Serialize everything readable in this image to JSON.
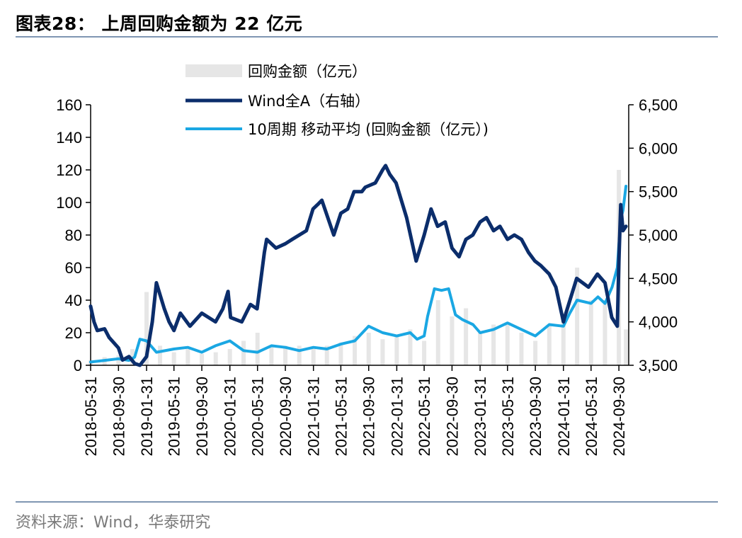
{
  "header": {
    "title": "图表28：  上周回购金额为 22 亿元"
  },
  "footer": {
    "source": "资料来源：Wind，华泰研究"
  },
  "chart_data": {
    "type": "bar+line",
    "title": "图表28：  上周回购金额为 22 亿元",
    "xlabel": "",
    "ylabel": "",
    "ylim": [
      0,
      160
    ],
    "y2lim": [
      3500,
      6500
    ],
    "yticks": [
      0,
      20,
      40,
      60,
      80,
      100,
      120,
      140,
      160
    ],
    "y2ticks": [
      "3,500",
      "4,000",
      "4,500",
      "5,000",
      "5,500",
      "6,000",
      "6,500"
    ],
    "xticks": [
      "2018-05-31",
      "2018-09-30",
      "2019-01-31",
      "2019-05-31",
      "2019-09-30",
      "2020-01-31",
      "2020-05-31",
      "2020-09-30",
      "2021-01-31",
      "2021-05-31",
      "2021-09-30",
      "2022-01-31",
      "2022-05-31",
      "2022-09-30",
      "2023-01-31",
      "2023-05-31",
      "2023-09-30",
      "2024-01-31",
      "2024-05-31",
      "2024-09-30"
    ],
    "grid": false,
    "legend": "top-center",
    "colors": {
      "bars": "#e6e6e6",
      "wind": "#0b2d6b",
      "ma": "#1aa7e3"
    },
    "series": [
      {
        "name": "回购金额（亿元）",
        "type": "bar",
        "axis": "left",
        "x": [
          "2018-05-31",
          "2018-07-31",
          "2018-09-30",
          "2018-11-30",
          "2019-01-31",
          "2019-03-31",
          "2019-05-31",
          "2019-07-31",
          "2019-09-30",
          "2019-11-30",
          "2020-01-31",
          "2020-03-31",
          "2020-05-31",
          "2020-07-31",
          "2020-09-30",
          "2020-11-30",
          "2021-01-31",
          "2021-03-31",
          "2021-05-31",
          "2021-07-31",
          "2021-09-30",
          "2021-11-30",
          "2022-01-31",
          "2022-03-31",
          "2022-05-31",
          "2022-07-31",
          "2022-09-30",
          "2022-11-30",
          "2023-01-31",
          "2023-03-31",
          "2023-05-31",
          "2023-07-31",
          "2023-09-30",
          "2023-11-30",
          "2024-01-31",
          "2024-03-31",
          "2024-05-31",
          "2024-07-31",
          "2024-09-30",
          "2024-10-31"
        ],
        "values": [
          3,
          5,
          6,
          10,
          45,
          12,
          8,
          10,
          7,
          8,
          10,
          15,
          20,
          12,
          12,
          12,
          10,
          12,
          14,
          18,
          20,
          16,
          18,
          22,
          15,
          40,
          30,
          35,
          20,
          25,
          25,
          20,
          15,
          25,
          28,
          60,
          40,
          40,
          120,
          22
        ]
      },
      {
        "name": "Wind全A（右轴）",
        "type": "line",
        "axis": "right",
        "x": [
          "2018-05-31",
          "2018-06-15",
          "2018-06-29",
          "2018-07-31",
          "2018-08-20",
          "2018-09-30",
          "2018-10-18",
          "2018-11-15",
          "2018-12-10",
          "2019-01-02",
          "2019-01-31",
          "2019-02-25",
          "2019-03-15",
          "2019-04-19",
          "2019-05-10",
          "2019-05-31",
          "2019-06-28",
          "2019-08-09",
          "2019-09-30",
          "2019-11-29",
          "2019-12-31",
          "2020-01-23",
          "2020-02-03",
          "2020-03-23",
          "2020-04-30",
          "2020-05-29",
          "2020-06-30",
          "2020-07-10",
          "2020-08-20",
          "2020-09-30",
          "2020-10-30",
          "2020-12-31",
          "2021-01-29",
          "2021-02-18",
          "2021-03-09",
          "2021-04-30",
          "2021-05-31",
          "2021-06-30",
          "2021-07-28",
          "2021-08-31",
          "2021-09-15",
          "2021-10-29",
          "2021-11-30",
          "2021-12-13",
          "2021-12-31",
          "2022-01-28",
          "2022-03-15",
          "2022-04-26",
          "2022-05-31",
          "2022-06-30",
          "2022-07-29",
          "2022-08-31",
          "2022-09-30",
          "2022-10-31",
          "2022-11-30",
          "2022-12-30",
          "2023-01-31",
          "2023-02-28",
          "2023-03-31",
          "2023-04-28",
          "2023-05-31",
          "2023-06-30",
          "2023-07-31",
          "2023-08-31",
          "2023-09-28",
          "2023-10-23",
          "2023-11-30",
          "2023-12-29",
          "2024-01-31",
          "2024-02-05",
          "2024-03-29",
          "2024-05-20",
          "2024-06-28",
          "2024-07-31",
          "2024-08-30",
          "2024-09-23",
          "2024-09-30",
          "2024-10-08",
          "2024-10-18",
          "2024-10-31"
        ],
        "values": [
          4180,
          4000,
          3900,
          3920,
          3820,
          3700,
          3560,
          3600,
          3520,
          3480,
          3600,
          4000,
          4450,
          4150,
          4000,
          3900,
          4100,
          3950,
          4100,
          4000,
          4150,
          4350,
          4050,
          4000,
          4200,
          4150,
          4800,
          4950,
          4850,
          4900,
          4950,
          5050,
          5300,
          5350,
          5400,
          5000,
          5250,
          5300,
          5500,
          5500,
          5550,
          5600,
          5750,
          5800,
          5700,
          5600,
          5200,
          4700,
          5000,
          5300,
          5100,
          5150,
          4850,
          4750,
          4950,
          5000,
          5150,
          5200,
          5050,
          5100,
          4950,
          5000,
          4950,
          4800,
          4700,
          4650,
          4550,
          4400,
          4000,
          4050,
          4500,
          4400,
          4550,
          4450,
          4050,
          3950,
          4700,
          5350,
          5050,
          5100
        ]
      },
      {
        "name": "10周期 移动平均 (回购金额（亿元）)",
        "type": "line",
        "axis": "left",
        "x": [
          "2018-05-31",
          "2018-07-31",
          "2018-09-30",
          "2018-11-15",
          "2018-12-10",
          "2019-01-02",
          "2019-01-31",
          "2019-03-15",
          "2019-05-31",
          "2019-07-31",
          "2019-09-30",
          "2019-11-29",
          "2020-01-31",
          "2020-03-31",
          "2020-05-31",
          "2020-07-31",
          "2020-09-30",
          "2020-11-30",
          "2021-01-31",
          "2021-03-31",
          "2021-05-31",
          "2021-07-31",
          "2021-09-30",
          "2021-11-30",
          "2022-01-31",
          "2022-03-31",
          "2022-04-30",
          "2022-05-31",
          "2022-06-15",
          "2022-07-15",
          "2022-08-15",
          "2022-09-15",
          "2022-10-15",
          "2022-11-15",
          "2022-12-31",
          "2023-01-31",
          "2023-03-31",
          "2023-05-31",
          "2023-07-31",
          "2023-09-30",
          "2023-11-30",
          "2024-01-31",
          "2024-02-28",
          "2024-03-31",
          "2024-05-31",
          "2024-06-30",
          "2024-07-31",
          "2024-08-31",
          "2024-09-23",
          "2024-10-08",
          "2024-10-18",
          "2024-10-31"
        ],
        "values": [
          2,
          3,
          4,
          3,
          5,
          16,
          15,
          8,
          10,
          11,
          8,
          12,
          15,
          9,
          8,
          12,
          11,
          9,
          11,
          10,
          13,
          15,
          24,
          20,
          18,
          20,
          16,
          18,
          30,
          47,
          46,
          47,
          31,
          28,
          25,
          20,
          22,
          26,
          22,
          18,
          25,
          24,
          32,
          40,
          38,
          42,
          38,
          48,
          60,
          90,
          95,
          110
        ]
      }
    ]
  }
}
